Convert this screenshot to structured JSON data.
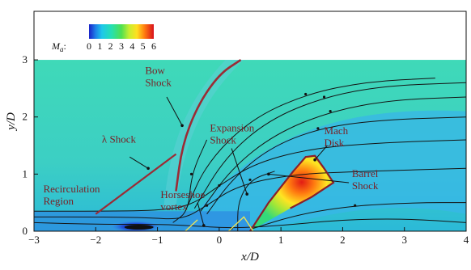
{
  "chart_data": {
    "type": "heatmap",
    "title": "",
    "xlabel": "x/D",
    "ylabel": "y/D",
    "xlim": [
      -3,
      4
    ],
    "ylim": [
      0,
      3.85
    ],
    "xticks": [
      -3,
      -2,
      -1,
      0,
      1,
      2,
      3,
      4
    ],
    "yticks": [
      0,
      1,
      2,
      3
    ],
    "colorbar": {
      "label": "Ma",
      "label_main": "M",
      "label_sub": "a",
      "label_suffix": ":",
      "ticks": [
        0,
        1,
        2,
        3,
        4,
        5,
        6
      ],
      "range": [
        0,
        6
      ]
    },
    "field_top_y": 3.0,
    "annotations": [
      {
        "name": "bow-shock",
        "lines": [
          "Bow",
          "Shock"
        ],
        "x": -1.2,
        "y": 2.75
      },
      {
        "name": "lambda-shock",
        "lines": [
          "λ  Shock"
        ],
        "x": -1.9,
        "y": 1.55
      },
      {
        "name": "expansion-shock",
        "lines": [
          "Expansion",
          "Shock"
        ],
        "x": -0.15,
        "y": 1.75
      },
      {
        "name": "mach-disk",
        "lines": [
          "Mach",
          "Disk"
        ],
        "x": 1.7,
        "y": 1.7
      },
      {
        "name": "barrel-shock",
        "lines": [
          "Barrel",
          "Shock"
        ],
        "x": 2.15,
        "y": 0.95
      },
      {
        "name": "recirculation-region",
        "lines": [
          "Recirculation",
          "Region"
        ],
        "x": -2.85,
        "y": 0.68
      },
      {
        "name": "horseshoe-vortex",
        "lines": [
          "Horseshoe",
          "vortex"
        ],
        "x": -0.95,
        "y": 0.58
      }
    ],
    "shock_lines": {
      "bow": [
        [
          -0.7,
          0.7
        ],
        [
          -0.6,
          1.5
        ],
        [
          -0.35,
          2.2
        ],
        [
          0.0,
          2.75
        ],
        [
          0.35,
          3.0
        ]
      ],
      "lambda": [
        [
          -2.0,
          0.3
        ],
        [
          -0.7,
          1.35
        ]
      ],
      "barrel": [
        [
          0.5,
          0.0
        ],
        [
          0.8,
          0.5
        ],
        [
          1.2,
          1.05
        ],
        [
          1.4,
          1.3
        ],
        [
          1.55,
          1.32
        ],
        [
          1.7,
          1.1
        ],
        [
          1.85,
          0.85
        ],
        [
          1.5,
          0.6
        ],
        [
          1.15,
          0.4
        ]
      ]
    },
    "streamlines": [
      [
        [
          -3,
          0.15
        ],
        [
          -2,
          0.12
        ],
        [
          -1,
          0.12
        ],
        [
          -0.5,
          0.1
        ],
        [
          0.2,
          0.05
        ],
        [
          1.0,
          0.1
        ],
        [
          2.0,
          0.2
        ],
        [
          3.0,
          0.22
        ],
        [
          4.0,
          0.15
        ]
      ],
      [
        [
          -3,
          0.25
        ],
        [
          -2,
          0.25
        ],
        [
          -1.2,
          0.24
        ],
        [
          -0.6,
          0.2
        ],
        [
          -0.2,
          0.45
        ],
        [
          0.3,
          0.8
        ],
        [
          1.2,
          1.0
        ],
        [
          2.4,
          1.05
        ],
        [
          4.0,
          1.1
        ]
      ],
      [
        [
          -3,
          0.35
        ],
        [
          -2,
          0.35
        ],
        [
          -1,
          0.36
        ],
        [
          -0.45,
          0.45
        ],
        [
          0.0,
          0.8
        ],
        [
          0.6,
          1.2
        ],
        [
          1.5,
          1.45
        ],
        [
          2.6,
          1.55
        ],
        [
          4.0,
          1.6
        ]
      ],
      [
        [
          -0.2,
          0.3
        ],
        [
          0.2,
          0.9
        ],
        [
          0.8,
          1.45
        ],
        [
          1.6,
          1.8
        ],
        [
          2.6,
          1.95
        ],
        [
          4.0,
          2.0
        ]
      ],
      [
        [
          -0.3,
          0.35
        ],
        [
          0.2,
          1.1
        ],
        [
          0.9,
          1.7
        ],
        [
          1.8,
          2.1
        ],
        [
          2.8,
          2.3
        ],
        [
          4.0,
          2.35
        ]
      ],
      [
        [
          -0.4,
          0.4
        ],
        [
          0.1,
          1.3
        ],
        [
          0.8,
          1.95
        ],
        [
          1.7,
          2.35
        ],
        [
          2.7,
          2.55
        ],
        [
          4.0,
          2.6
        ]
      ],
      [
        [
          -0.55,
          0.35
        ],
        [
          -0.2,
          1.2
        ],
        [
          0.5,
          1.95
        ],
        [
          1.4,
          2.4
        ],
        [
          2.4,
          2.62
        ],
        [
          3.5,
          2.68
        ]
      ],
      [
        [
          0.3,
          0.0
        ],
        [
          0.3,
          0.5
        ],
        [
          0.5,
          0.9
        ],
        [
          0.9,
          1.05
        ]
      ],
      [
        [
          0.55,
          0.05
        ],
        [
          1.3,
          0.3
        ],
        [
          2.2,
          0.45
        ],
        [
          3.2,
          0.5
        ],
        [
          4.0,
          0.5
        ]
      ],
      [
        [
          -0.75,
          0.15
        ],
        [
          -0.5,
          0.35
        ],
        [
          -0.45,
          1.0
        ],
        [
          -0.2,
          1.6
        ]
      ]
    ]
  }
}
